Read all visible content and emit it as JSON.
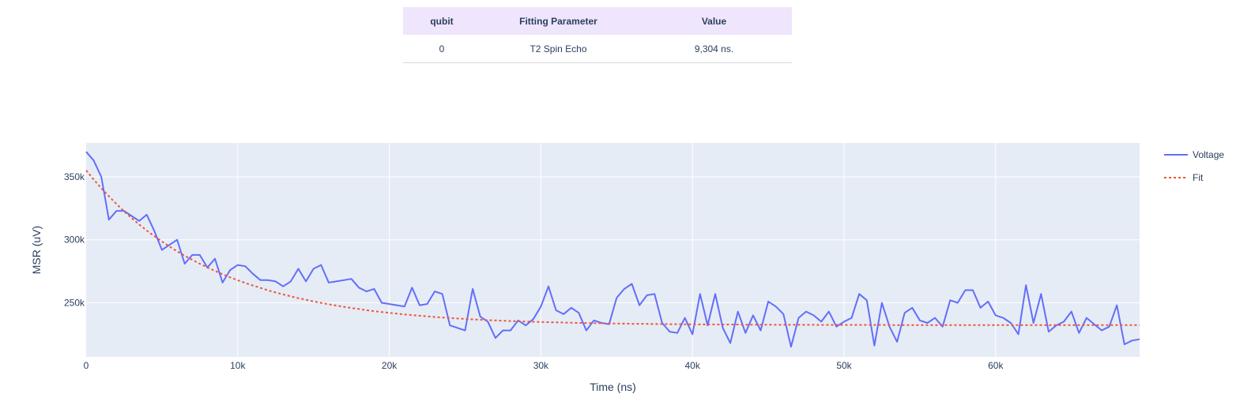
{
  "table": {
    "headers": [
      "qubit",
      "Fitting Parameter",
      "Value"
    ],
    "rows": [
      [
        "0",
        "T2 Spin Echo",
        "9,304 ns."
      ]
    ]
  },
  "colors": {
    "plot_bg": "#e5ecf6",
    "grid": "#ffffff",
    "voltage": "#636efa",
    "fit": "#ef553b",
    "header_bg": "#efe5fc"
  },
  "chart_data": {
    "type": "line",
    "title": "",
    "xlabel": "Time (ns)",
    "ylabel": "MSR (uV)",
    "xlim": [
      0,
      69500
    ],
    "ylim": [
      207000,
      377000
    ],
    "grid": true,
    "legend_position": "top-right",
    "x_ticks": [
      {
        "value": 0,
        "label": "0"
      },
      {
        "value": 10000,
        "label": "10k"
      },
      {
        "value": 20000,
        "label": "20k"
      },
      {
        "value": 30000,
        "label": "30k"
      },
      {
        "value": 40000,
        "label": "40k"
      },
      {
        "value": 50000,
        "label": "50k"
      },
      {
        "value": 60000,
        "label": "60k"
      }
    ],
    "y_ticks": [
      {
        "value": 250000,
        "label": "250k"
      },
      {
        "value": 300000,
        "label": "300k"
      },
      {
        "value": 350000,
        "label": "350k"
      }
    ],
    "x": [
      0,
      500,
      1000,
      1500,
      2000,
      2500,
      3000,
      3500,
      4000,
      4500,
      5000,
      5500,
      6000,
      6500,
      7000,
      7500,
      8000,
      8500,
      9000,
      9500,
      10000,
      10500,
      11000,
      11500,
      12000,
      12500,
      13000,
      13500,
      14000,
      14500,
      15000,
      15500,
      16000,
      16500,
      17000,
      17500,
      18000,
      18500,
      19000,
      19500,
      20000,
      20500,
      21000,
      21500,
      22000,
      22500,
      23000,
      23500,
      24000,
      24500,
      25000,
      25500,
      26000,
      26500,
      27000,
      27500,
      28000,
      28500,
      29000,
      29500,
      30000,
      30500,
      31000,
      31500,
      32000,
      32500,
      33000,
      33500,
      34000,
      34500,
      35000,
      35500,
      36000,
      36500,
      37000,
      37500,
      38000,
      38500,
      39000,
      39500,
      40000,
      40500,
      41000,
      41500,
      42000,
      42500,
      43000,
      43500,
      44000,
      44500,
      45000,
      45500,
      46000,
      46500,
      47000,
      47500,
      48000,
      48500,
      49000,
      49500,
      50000,
      50500,
      51000,
      51500,
      52000,
      52500,
      53000,
      53500,
      54000,
      54500,
      55000,
      55500,
      56000,
      56500,
      57000,
      57500,
      58000,
      58500,
      59000,
      59500,
      60000,
      60500,
      61000,
      61500,
      62000,
      62500,
      63000,
      63500,
      64000,
      64500,
      65000,
      65500,
      66000,
      66500,
      67000,
      67500,
      68000,
      68500,
      69000,
      69500
    ],
    "series": [
      {
        "name": "Voltage",
        "values": [
          370000,
          363000,
          350000,
          316000,
          323000,
          323000,
          319000,
          315000,
          320000,
          307000,
          292000,
          296000,
          300000,
          281000,
          288000,
          288000,
          278000,
          285000,
          266000,
          276000,
          280000,
          279000,
          273000,
          268000,
          268000,
          267000,
          263000,
          267000,
          277000,
          267000,
          277000,
          280000,
          266000,
          267000,
          268000,
          269000,
          262000,
          259000,
          261000,
          250000,
          249000,
          248000,
          247000,
          262000,
          248000,
          249000,
          259000,
          257000,
          232000,
          230000,
          228000,
          261000,
          239000,
          235000,
          222000,
          228000,
          228000,
          236000,
          232000,
          237000,
          247000,
          263000,
          244000,
          241000,
          246000,
          242000,
          228000,
          236000,
          234000,
          233000,
          254000,
          261000,
          265000,
          248000,
          256000,
          257000,
          234000,
          227000,
          226000,
          238000,
          225000,
          257000,
          232000,
          257000,
          230000,
          218000,
          243000,
          226000,
          240000,
          228000,
          251000,
          247000,
          241000,
          215000,
          238000,
          243000,
          240000,
          235000,
          243000,
          231000,
          235000,
          238000,
          257000,
          252000,
          216000,
          250000,
          231000,
          219000,
          242000,
          246000,
          236000,
          234000,
          238000,
          231000,
          252000,
          250000,
          260000,
          260000,
          246000,
          251000,
          240000,
          238000,
          234000,
          225000,
          264000,
          234000,
          257000,
          227000,
          232000,
          235000,
          243000,
          226000,
          238000,
          233000,
          228000,
          231000,
          248000,
          217000,
          220000,
          221000
        ]
      },
      {
        "name": "Fit",
        "values": [
          355200,
          347900,
          341000,
          334600,
          328500,
          322700,
          317300,
          312200,
          307400,
          302900,
          298700,
          294700,
          290900,
          287400,
          284100,
          281000,
          278000,
          275300,
          272700,
          270200,
          267900,
          265700,
          263700,
          261800,
          259900,
          258200,
          256600,
          255100,
          253700,
          252400,
          251100,
          249900,
          248800,
          247800,
          246800,
          245800,
          245000,
          244100,
          243400,
          242600,
          242000,
          241300,
          240700,
          240200,
          239700,
          239200,
          238700,
          238300,
          237900,
          237500,
          237200,
          236800,
          236500,
          236200,
          236000,
          235700,
          235500,
          235300,
          235100,
          234900,
          234700,
          234600,
          234400,
          234300,
          234100,
          234000,
          233900,
          233800,
          233700,
          233600,
          233500,
          233400,
          233300,
          233300,
          233200,
          233100,
          233100,
          233000,
          233000,
          232900,
          232900,
          232800,
          232800,
          232800,
          232700,
          232700,
          232700,
          232600,
          232600,
          232600,
          232600,
          232500,
          232500,
          232500,
          232500,
          232500,
          232500,
          232400,
          232400,
          232400,
          232400,
          232400,
          232400,
          232400,
          232400,
          232400,
          232300,
          232300,
          232300,
          232300,
          232300,
          232300,
          232300,
          232300,
          232300,
          232300,
          232300,
          232300,
          232300,
          232300,
          232300,
          232300,
          232300,
          232300,
          232300,
          232300,
          232300,
          232300,
          232300,
          232300,
          232300,
          232300,
          232300,
          232300,
          232300,
          232300,
          232300,
          232300,
          232300,
          232300
        ]
      }
    ]
  }
}
